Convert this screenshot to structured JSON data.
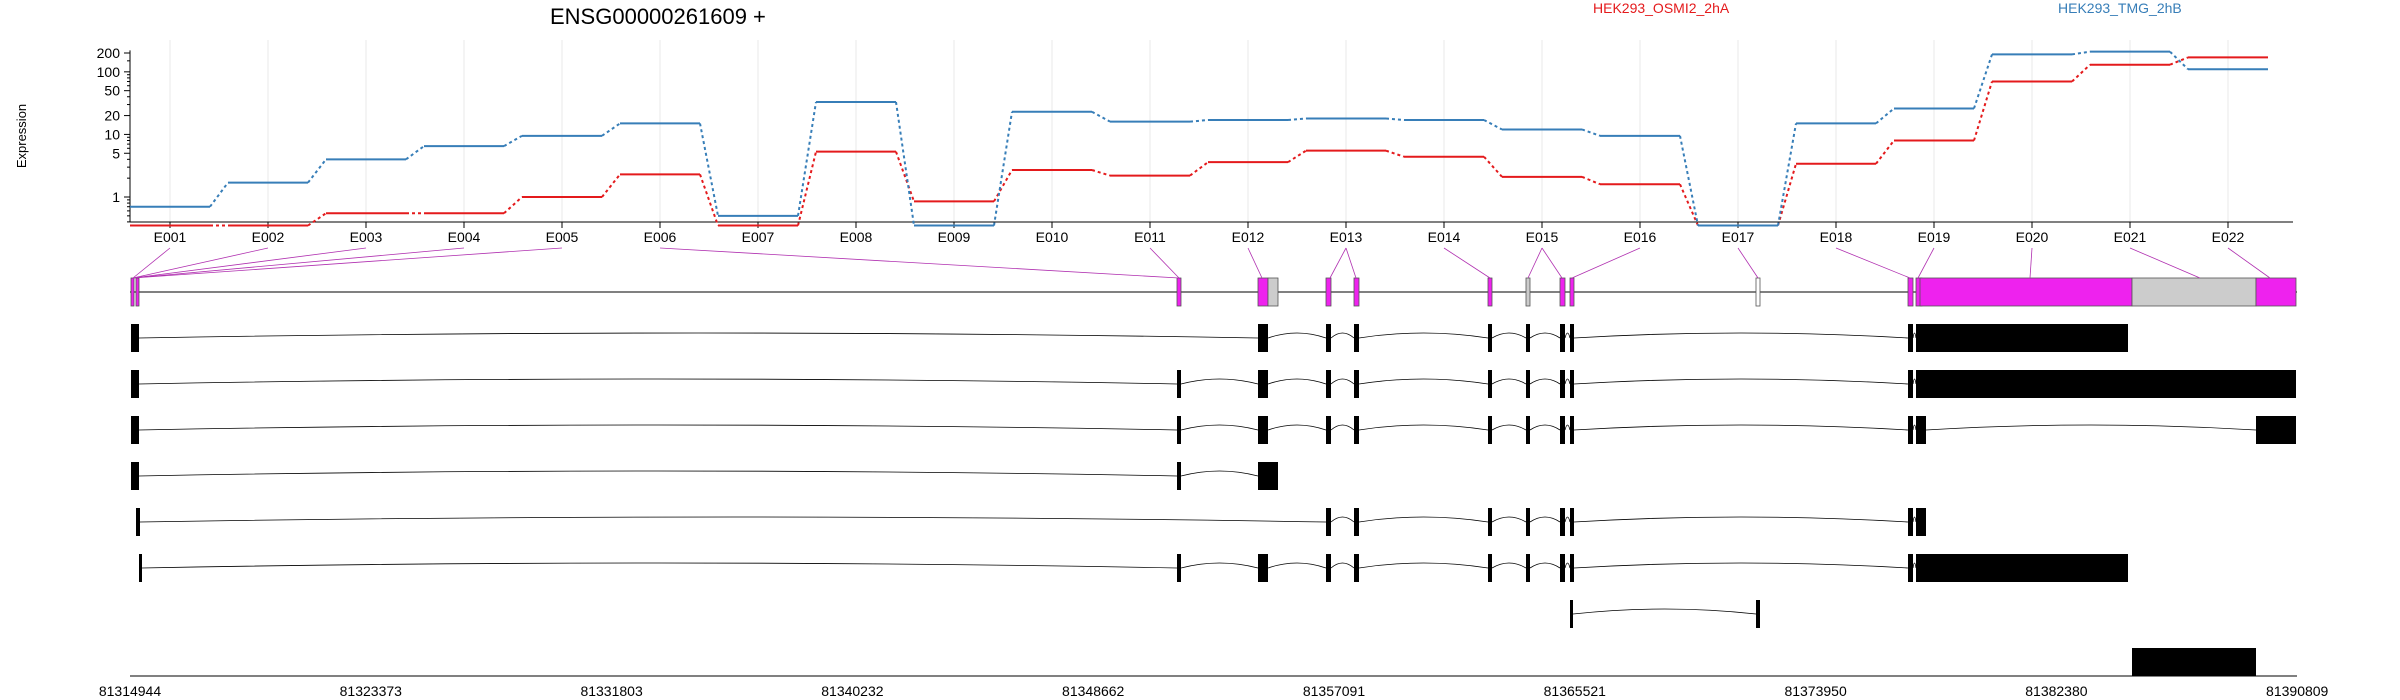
{
  "chart_data": {
    "type": "line",
    "title": "ENSG00000261609 +",
    "ylabel": "Expression",
    "y_scale": "log",
    "grid": "vertical",
    "legend_placement": "top",
    "yticks": [
      "200",
      "100",
      "50",
      "20",
      "10",
      "5",
      "1"
    ],
    "ytick_values": [
      200,
      100,
      50,
      20,
      10,
      5,
      1
    ],
    "categories": [
      "E001",
      "E002",
      "E003",
      "E004",
      "E005",
      "E006",
      "E007",
      "E008",
      "E009",
      "E010",
      "E011",
      "E012",
      "E013",
      "E014",
      "E015",
      "E016",
      "E017",
      "E018",
      "E019",
      "E020",
      "E021",
      "E022"
    ],
    "series": [
      {
        "name": "HEK293_OSMI2_2hA",
        "color": "#e41a1c",
        "values": [
          0.35,
          0.35,
          0.55,
          0.55,
          1.0,
          2.3,
          0.35,
          5.3,
          0.85,
          2.7,
          2.2,
          3.6,
          5.5,
          4.4,
          2.1,
          1.6,
          0.35,
          3.4,
          8.0,
          70,
          130,
          170
        ]
      },
      {
        "name": "HEK293_TMG_2hB",
        "color": "#377eb8",
        "values": [
          0.7,
          1.7,
          4.0,
          6.5,
          9.5,
          15,
          0.5,
          33,
          0.35,
          23,
          16,
          17,
          18,
          17,
          12,
          9.5,
          0.35,
          15,
          26,
          190,
          210,
          110
        ]
      }
    ],
    "genomic_axis": {
      "ticks": [
        "81314944",
        "81323373",
        "81331803",
        "81340232",
        "81348662",
        "81357091",
        "81365521",
        "81373950",
        "81382380",
        "81390809"
      ]
    }
  },
  "colors": {
    "exon_highlight": "#ee22ee",
    "exon_gray": "#cccccc",
    "grid": "#e8e8e8"
  }
}
